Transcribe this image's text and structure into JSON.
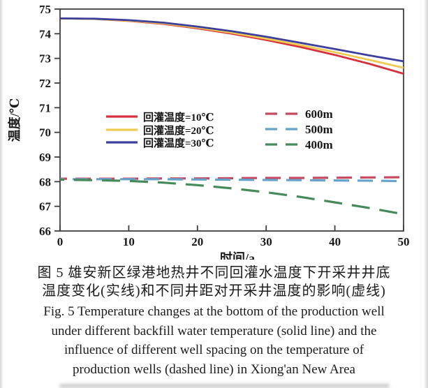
{
  "figure": {
    "caption_zh_1": "图 5  雄安新区绿港地热井不同回灌水温度下开采井井底",
    "caption_zh_2": "温度变化(实线)和不同井距对开采井温度的影响(虚线)",
    "caption_en_1": "Fig. 5  Temperature changes at the bottom of the production well",
    "caption_en_2": "under different backfill water temperature (solid line) and the",
    "caption_en_3": "influence of different well spacing on the temperature of",
    "caption_en_4": "production wells (dashed line) in Xiong'an New Area"
  },
  "chart_data": {
    "type": "line",
    "title": "",
    "xlabel": "时间/a",
    "ylabel": "温度/℃",
    "xlim": [
      0,
      50
    ],
    "ylim": [
      66,
      75
    ],
    "x_ticks": [
      0,
      10,
      20,
      30,
      40,
      50
    ],
    "y_ticks": [
      66,
      67,
      68,
      69,
      70,
      71,
      72,
      73,
      74,
      75
    ],
    "grid": false,
    "legend_position": "center",
    "axis_color": "#3f3f3f",
    "x": [
      0,
      5,
      10,
      15,
      20,
      25,
      30,
      35,
      40,
      45,
      50
    ],
    "series": [
      {
        "name": "回灌温度=10℃",
        "color": "#d7313d",
        "style": "solid",
        "legend_group": "solid",
        "values": [
          74.62,
          74.6,
          74.52,
          74.4,
          74.22,
          74.0,
          73.75,
          73.46,
          73.14,
          72.78,
          72.38
        ]
      },
      {
        "name": "回灌温度=20℃",
        "color": "#efcb52",
        "style": "solid",
        "legend_group": "solid",
        "values": [
          74.62,
          74.6,
          74.53,
          74.42,
          74.25,
          74.04,
          73.8,
          73.54,
          73.25,
          72.94,
          72.62
        ]
      },
      {
        "name": "回灌温度=30℃",
        "color": "#3c3f9b",
        "style": "solid",
        "legend_group": "solid",
        "values": [
          74.62,
          74.61,
          74.55,
          74.45,
          74.29,
          74.1,
          73.88,
          73.63,
          73.38,
          73.12,
          72.88
        ]
      },
      {
        "name": "600m",
        "color": "#c84a60",
        "style": "dashed",
        "legend_group": "dashed",
        "values": [
          68.12,
          68.12,
          68.12,
          68.13,
          68.13,
          68.14,
          68.15,
          68.15,
          68.16,
          68.17,
          68.18
        ]
      },
      {
        "name": "500m",
        "color": "#66a3cb",
        "style": "dashed",
        "legend_group": "dashed",
        "values": [
          68.1,
          68.1,
          68.1,
          68.1,
          68.09,
          68.08,
          68.07,
          68.06,
          68.05,
          68.04,
          68.02
        ]
      },
      {
        "name": "400m",
        "color": "#46895a",
        "style": "dashed",
        "legend_group": "dashed",
        "values": [
          68.08,
          68.06,
          68.03,
          67.96,
          67.86,
          67.73,
          67.57,
          67.38,
          67.16,
          66.93,
          66.68
        ]
      }
    ]
  }
}
